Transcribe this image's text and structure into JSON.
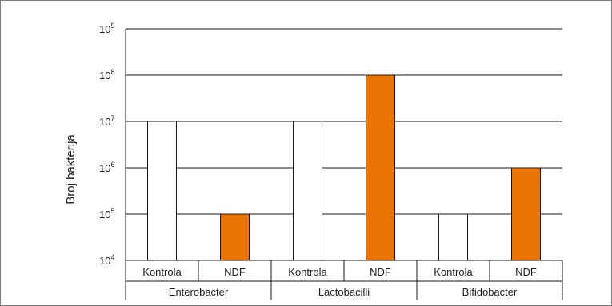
{
  "chart_data": {
    "type": "bar",
    "ylabel": "Broj bakterija",
    "yscale": "log",
    "ylim": [
      10000,
      1000000000
    ],
    "grid": true,
    "y_ticks": [
      {
        "base": "10",
        "exp": "4"
      },
      {
        "base": "10",
        "exp": "5"
      },
      {
        "base": "10",
        "exp": "6"
      },
      {
        "base": "10",
        "exp": "7"
      },
      {
        "base": "10",
        "exp": "8"
      },
      {
        "base": "10",
        "exp": "9"
      }
    ],
    "groups": [
      "Enterobacter",
      "Lactobacilli",
      "Bifidobacter"
    ],
    "series": [
      {
        "name": "Kontrola",
        "color": "#ffffff",
        "values": [
          10000000,
          10000000,
          100000
        ]
      },
      {
        "name": "NDF",
        "color": "#ec7404",
        "values": [
          100000,
          100000000,
          1000000
        ]
      }
    ]
  }
}
